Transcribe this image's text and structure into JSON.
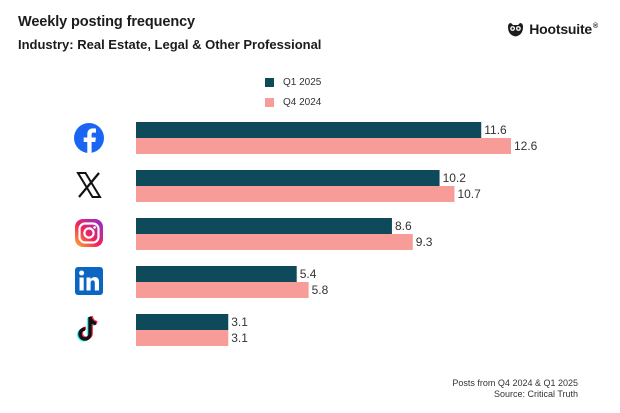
{
  "header": {
    "title": "Weekly posting frequency",
    "subtitle": "Industry: Real Estate, Legal & Other Professional"
  },
  "brand": {
    "name": "Hootsuite",
    "mark": "®"
  },
  "colors": {
    "q1_2025": "#0f4a5b",
    "q4_2024": "#f89c9a",
    "text": "#1c1c1c"
  },
  "footer": {
    "line1": "Posts from Q4 2024 & Q1 2025",
    "line2": "Source: Critical Truth"
  },
  "chart_data": {
    "type": "bar",
    "orientation": "horizontal",
    "title": "Weekly posting frequency",
    "subtitle": "Industry: Real Estate, Legal & Other Professional",
    "categories": [
      "Facebook",
      "X",
      "Instagram",
      "LinkedIn",
      "TikTok"
    ],
    "category_icons": [
      "facebook-icon",
      "x-icon",
      "instagram-icon",
      "linkedin-icon",
      "tiktok-icon"
    ],
    "series": [
      {
        "name": "Q1 2025",
        "color": "#0f4a5b",
        "values": [
          11.6,
          10.2,
          8.6,
          5.4,
          3.1
        ]
      },
      {
        "name": "Q4 2024",
        "color": "#f89c9a",
        "values": [
          12.6,
          10.7,
          9.3,
          5.8,
          3.1
        ]
      }
    ],
    "legend": "top",
    "grid": false,
    "xlim": [
      0,
      12.6
    ]
  }
}
